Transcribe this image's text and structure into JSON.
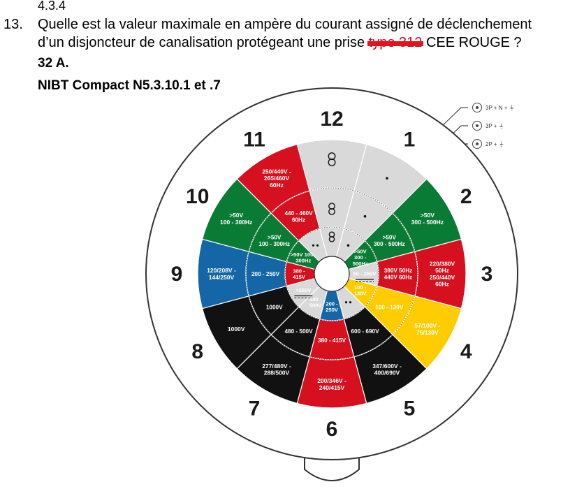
{
  "doc": {
    "prev_ref": "4.3.4",
    "question_number": "13.",
    "question_line1": "Quelle est la valeur maximale en ampère du courant assigné de déclenchement",
    "question_line2_a": "d’un disjoncteur de canalisation protégeant une prise ",
    "question_struck": "type 312",
    "question_line2_b": "  CEE ROUGE ?",
    "answer": "32 A.",
    "reference": "NIBT Compact N5.3.10.1 et .7"
  },
  "legend": [
    {
      "label": "3P + N + ⏚"
    },
    {
      "label": "3P + ⏚"
    },
    {
      "label": "2P + ⏚"
    }
  ],
  "hours": [
    "12",
    "1",
    "2",
    "3",
    "4",
    "5",
    "6",
    "7",
    "8",
    "9",
    "10",
    "11"
  ],
  "colors": {
    "red": "#d6101e",
    "green": "#0a7b35",
    "blue": "#1466a6",
    "yellow": "#ffcc00",
    "black": "#111111",
    "grey": "#d9d9d9",
    "outline": "#333333"
  },
  "rings": {
    "outer": [
      {
        "label": "",
        "color": "grey",
        "icon": "none"
      },
      {
        "label": "",
        "color": "grey",
        "icon": "dot"
      },
      {
        "label": ">50V\n300 - 500Hz",
        "color": "green"
      },
      {
        "label": "220/380V\n50Hz\n250/440V\n60Hz",
        "color": "red"
      },
      {
        "label": "57/100V -\n75/130V",
        "color": "yellow",
        "text": "dark"
      },
      {
        "label": "347/600V -\n400/690V",
        "color": "black"
      },
      {
        "label": "200/346V -\n240/415V",
        "color": "red"
      },
      {
        "label": "277/480V -\n288/500V",
        "color": "black"
      },
      {
        "label": "1000V",
        "color": "black"
      },
      {
        "label": "120/208V -\n144/250V",
        "color": "blue"
      },
      {
        "label": ">50V\n100 - 300Hz",
        "color": "green"
      },
      {
        "label": "250/440V -\n265/460V\n60Hz",
        "color": "red"
      }
    ],
    "middle": [
      {
        "label": "",
        "color": "grey",
        "icon": "none"
      },
      {
        "label": "",
        "color": "grey",
        "icon": "dot"
      },
      {
        "label": ">50V\n300 - 500Hz",
        "color": "green"
      },
      {
        "label": "380V 50Hz\n440V 60Hz",
        "color": "red"
      },
      {
        "label": "100 - 130V",
        "color": "yellow",
        "text": "dark"
      },
      {
        "label": "600 - 690V",
        "color": "black"
      },
      {
        "label": "380 - 415V",
        "color": "red"
      },
      {
        "label": "480 - 500V",
        "color": "black"
      },
      {
        "label": "1000V",
        "color": "black"
      },
      {
        "label": "200 - 250V",
        "color": "blue"
      },
      {
        "label": ">50V\n100 - 300Hz",
        "color": "green"
      },
      {
        "label": "440 - 460V\n60Hz",
        "color": "red"
      }
    ],
    "inner": [
      {
        "label": "",
        "color": "grey",
        "icon": "none"
      },
      {
        "label": "",
        "color": "grey",
        "icon": "dot"
      },
      {
        "label": ">50V\n300 -\n500Hz",
        "color": "green"
      },
      {
        "label": "50 - 250V",
        "color": "grey",
        "text": "dark"
      },
      {
        "label": "100 -\n130V",
        "color": "yellow",
        "text": "dark"
      },
      {
        "label": "",
        "color": "grey",
        "icon": "dots"
      },
      {
        "label": "200 -\n250V",
        "color": "blue"
      },
      {
        "label": "480 -\n500V",
        "color": "grey",
        "text": "dark"
      },
      {
        "label": ">250V",
        "color": "grey",
        "text": "dark"
      },
      {
        "label": "380 -\n415V",
        "color": "red"
      },
      {
        "label": ">50V 100 -\n300Hz",
        "color": "green"
      },
      {
        "label": "",
        "color": "grey",
        "icon": "dots"
      }
    ]
  }
}
